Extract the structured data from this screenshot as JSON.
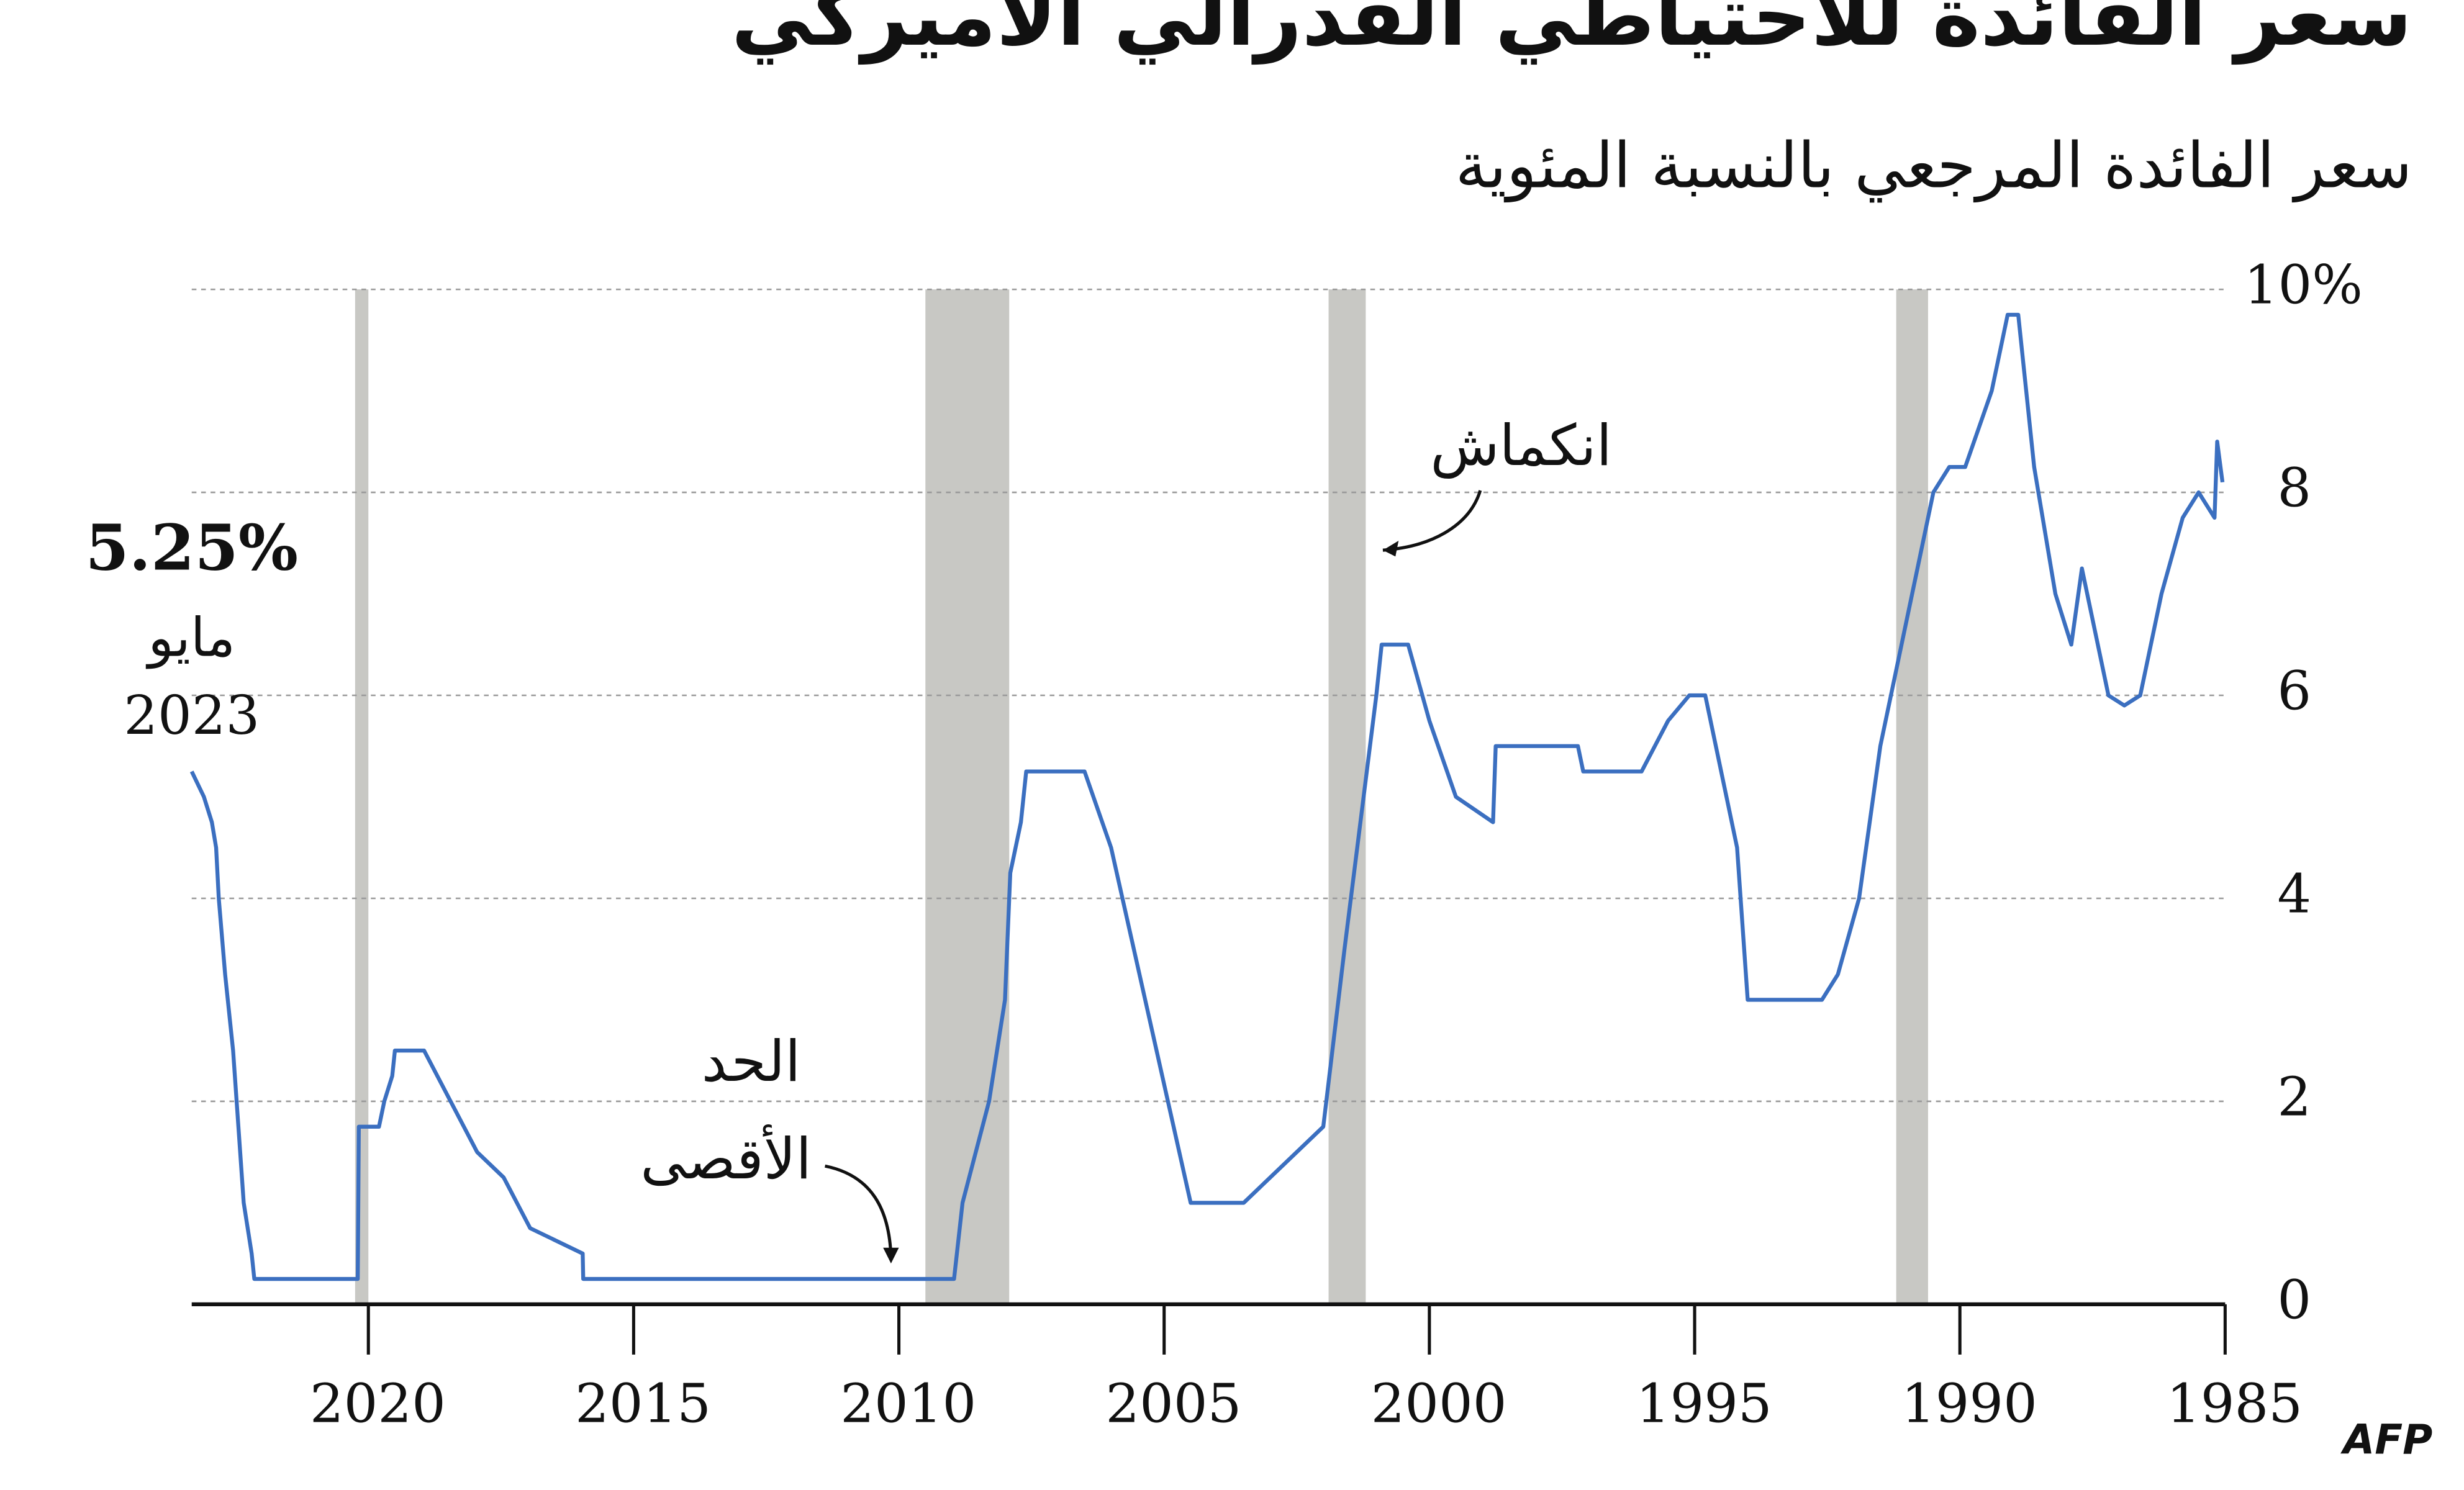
{
  "chart_data": {
    "type": "line",
    "title": "سعر الفائدة للاحتياطي الفدرالي الأميركي",
    "subtitle": "سعر الفائدة المرجعي بالنسبة المئوية",
    "annotations": [
      "5.25%",
      "مايو",
      "2023",
      "انكماش",
      "الحد",
      "الأقصى"
    ],
    "source": "AFP",
    "xlim": [
      2023.33,
      1985
    ],
    "xticks": [
      2020,
      2015,
      2010,
      2005,
      2000,
      1995,
      1990,
      1985
    ],
    "ylim": [
      0,
      10
    ],
    "yticks": [
      0,
      2,
      4,
      6,
      8,
      {
        "value": 10,
        "label": "10%"
      }
    ],
    "grid": true,
    "recession_color": "#c8c8c4",
    "recessions": [
      [
        2020.25,
        2020.0
      ],
      [
        2009.5,
        2007.92
      ],
      [
        2001.9,
        2001.2
      ],
      [
        1991.2,
        1990.6
      ]
    ],
    "series": [
      {
        "color": "#3b6fc0",
        "x": [
          2023.33,
          2023.1,
          2022.95,
          2022.87,
          2022.82,
          2022.7,
          2022.55,
          2022.45,
          2022.35,
          2022.2,
          2022.15,
          2020.2,
          2020.18,
          2019.8,
          2019.7,
          2019.55,
          2019.5,
          2018.95,
          2018.7,
          2018.45,
          2018.2,
          2017.95,
          2017.45,
          2017.2,
          2016.95,
          2015.96,
          2015.95,
          2008.96,
          2008.8,
          2008.3,
          2008.0,
          2007.9,
          2007.7,
          2007.6,
          2006.5,
          2006.0,
          2004.5,
          2003.5,
          2003.0,
          2002.0,
          2001.6,
          2001.0,
          2000.9,
          2000.4,
          2000.0,
          1999.5,
          1998.8,
          1998.75,
          1997.2,
          1997.1,
          1996.0,
          1995.5,
          1995.1,
          1994.8,
          1994.2,
          1994.0,
          1992.6,
          1992.3,
          1991.9,
          1991.5,
          1990.9,
          1990.5,
          1990.2,
          1989.9,
          1989.4,
          1989.1,
          1988.9,
          1988.6,
          1988.2,
          1987.9,
          1987.7,
          1987.5,
          1987.2,
          1986.9,
          1986.6,
          1986.2,
          1985.8,
          1985.5,
          1985.2,
          1985.15,
          1985.05
        ],
        "values": [
          5.25,
          5.0,
          4.75,
          4.5,
          4.0,
          3.25,
          2.5,
          1.75,
          1.0,
          0.5,
          0.25,
          0.25,
          1.75,
          1.75,
          2.0,
          2.25,
          2.5,
          2.5,
          2.25,
          2.0,
          1.75,
          1.5,
          1.25,
          1.0,
          0.75,
          0.5,
          0.25,
          0.25,
          1.0,
          2.0,
          3.0,
          4.25,
          4.75,
          5.25,
          5.25,
          4.5,
          1.0,
          1.0,
          1.25,
          1.75,
          3.5,
          6.0,
          6.5,
          6.5,
          5.75,
          5.0,
          4.75,
          5.5,
          5.5,
          5.25,
          5.25,
          5.75,
          6.0,
          6.0,
          4.5,
          3.0,
          3.0,
          3.25,
          4.0,
          5.5,
          7.0,
          8.0,
          8.25,
          8.25,
          9.0,
          9.75,
          9.75,
          8.25,
          7.0,
          6.5,
          7.25,
          6.75,
          6.0,
          5.9,
          6.0,
          7.0,
          7.75,
          8.0,
          7.75,
          8.5,
          8.1
        ]
      }
    ]
  }
}
